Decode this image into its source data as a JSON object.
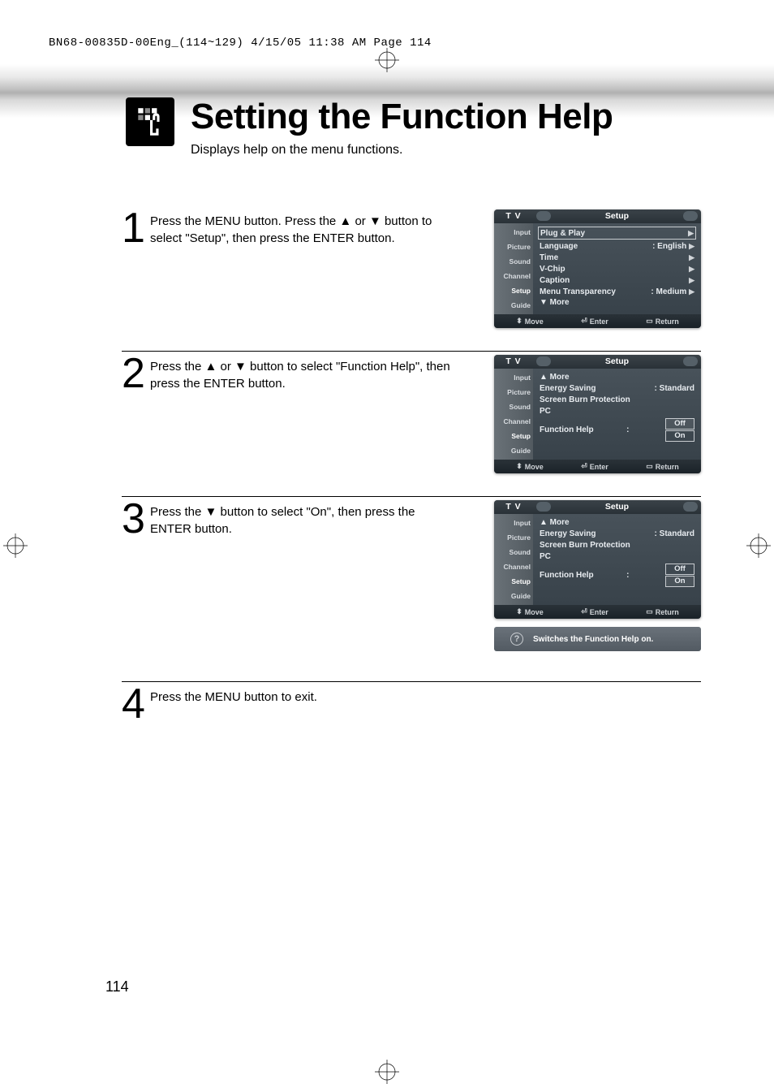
{
  "crop_header": "BN68-00835D-00Eng_(114~129)  4/15/05  11:38 AM  Page 114",
  "page_title": "Setting the Function Help",
  "subtitle": "Displays help on the menu functions.",
  "page_number": "114",
  "steps": [
    {
      "num": "1",
      "text": "Press the MENU button.\nPress the ▲ or ▼ button to select \"Setup\", then press the ENTER button."
    },
    {
      "num": "2",
      "text": "Press the ▲ or ▼ button to select \"Function Help\", then press the ENTER button."
    },
    {
      "num": "3",
      "text": "Press the ▼ button to select \"On\", then press the ENTER button."
    },
    {
      "num": "4",
      "text": "Press the MENU button to exit."
    }
  ],
  "tv": {
    "header_left": "T V",
    "header_right": "Setup",
    "sidebar": [
      "Input",
      "Picture",
      "Sound",
      "Channel",
      "Setup",
      "Guide"
    ],
    "footer": {
      "move": "Move",
      "enter": "Enter",
      "return": "Return"
    }
  },
  "screen1": {
    "rows": [
      {
        "label": "Plug & Play",
        "val": "",
        "arrow": "▶",
        "boxed": true
      },
      {
        "label": "Language",
        "val": ": English",
        "arrow": "▶"
      },
      {
        "label": "Time",
        "val": "",
        "arrow": "▶"
      },
      {
        "label": "V-Chip",
        "val": "",
        "arrow": "▶"
      },
      {
        "label": "Caption",
        "val": "",
        "arrow": "▶"
      },
      {
        "label": "Menu Transparency",
        "val": ": Medium",
        "arrow": "▶"
      }
    ],
    "more": "▼ More"
  },
  "screen2": {
    "more": "▲ More",
    "rows": [
      {
        "label": "Energy Saving",
        "val": ": Standard"
      },
      {
        "label": "Screen Burn Protection",
        "val": ""
      },
      {
        "label": "PC",
        "val": ""
      }
    ],
    "fh_label": "Function Help",
    "fh_colon": ":",
    "opts": [
      "Off",
      "On"
    ],
    "highlight": "Off"
  },
  "screen3": {
    "more": "▲ More",
    "rows": [
      {
        "label": "Energy Saving",
        "val": ": Standard"
      },
      {
        "label": "Screen Burn Protection",
        "val": ""
      },
      {
        "label": "PC",
        "val": ""
      }
    ],
    "fh_label": "Function Help",
    "fh_colon": ":",
    "opts": [
      "Off",
      "On"
    ],
    "highlight": "On"
  },
  "help_strip": "Switches the Function Help on.",
  "colors": {
    "screen_bg": "#48525a",
    "sidebar_bg": "#6a7278",
    "header_bg": "#2a3238",
    "text": "#e8ecf0"
  }
}
